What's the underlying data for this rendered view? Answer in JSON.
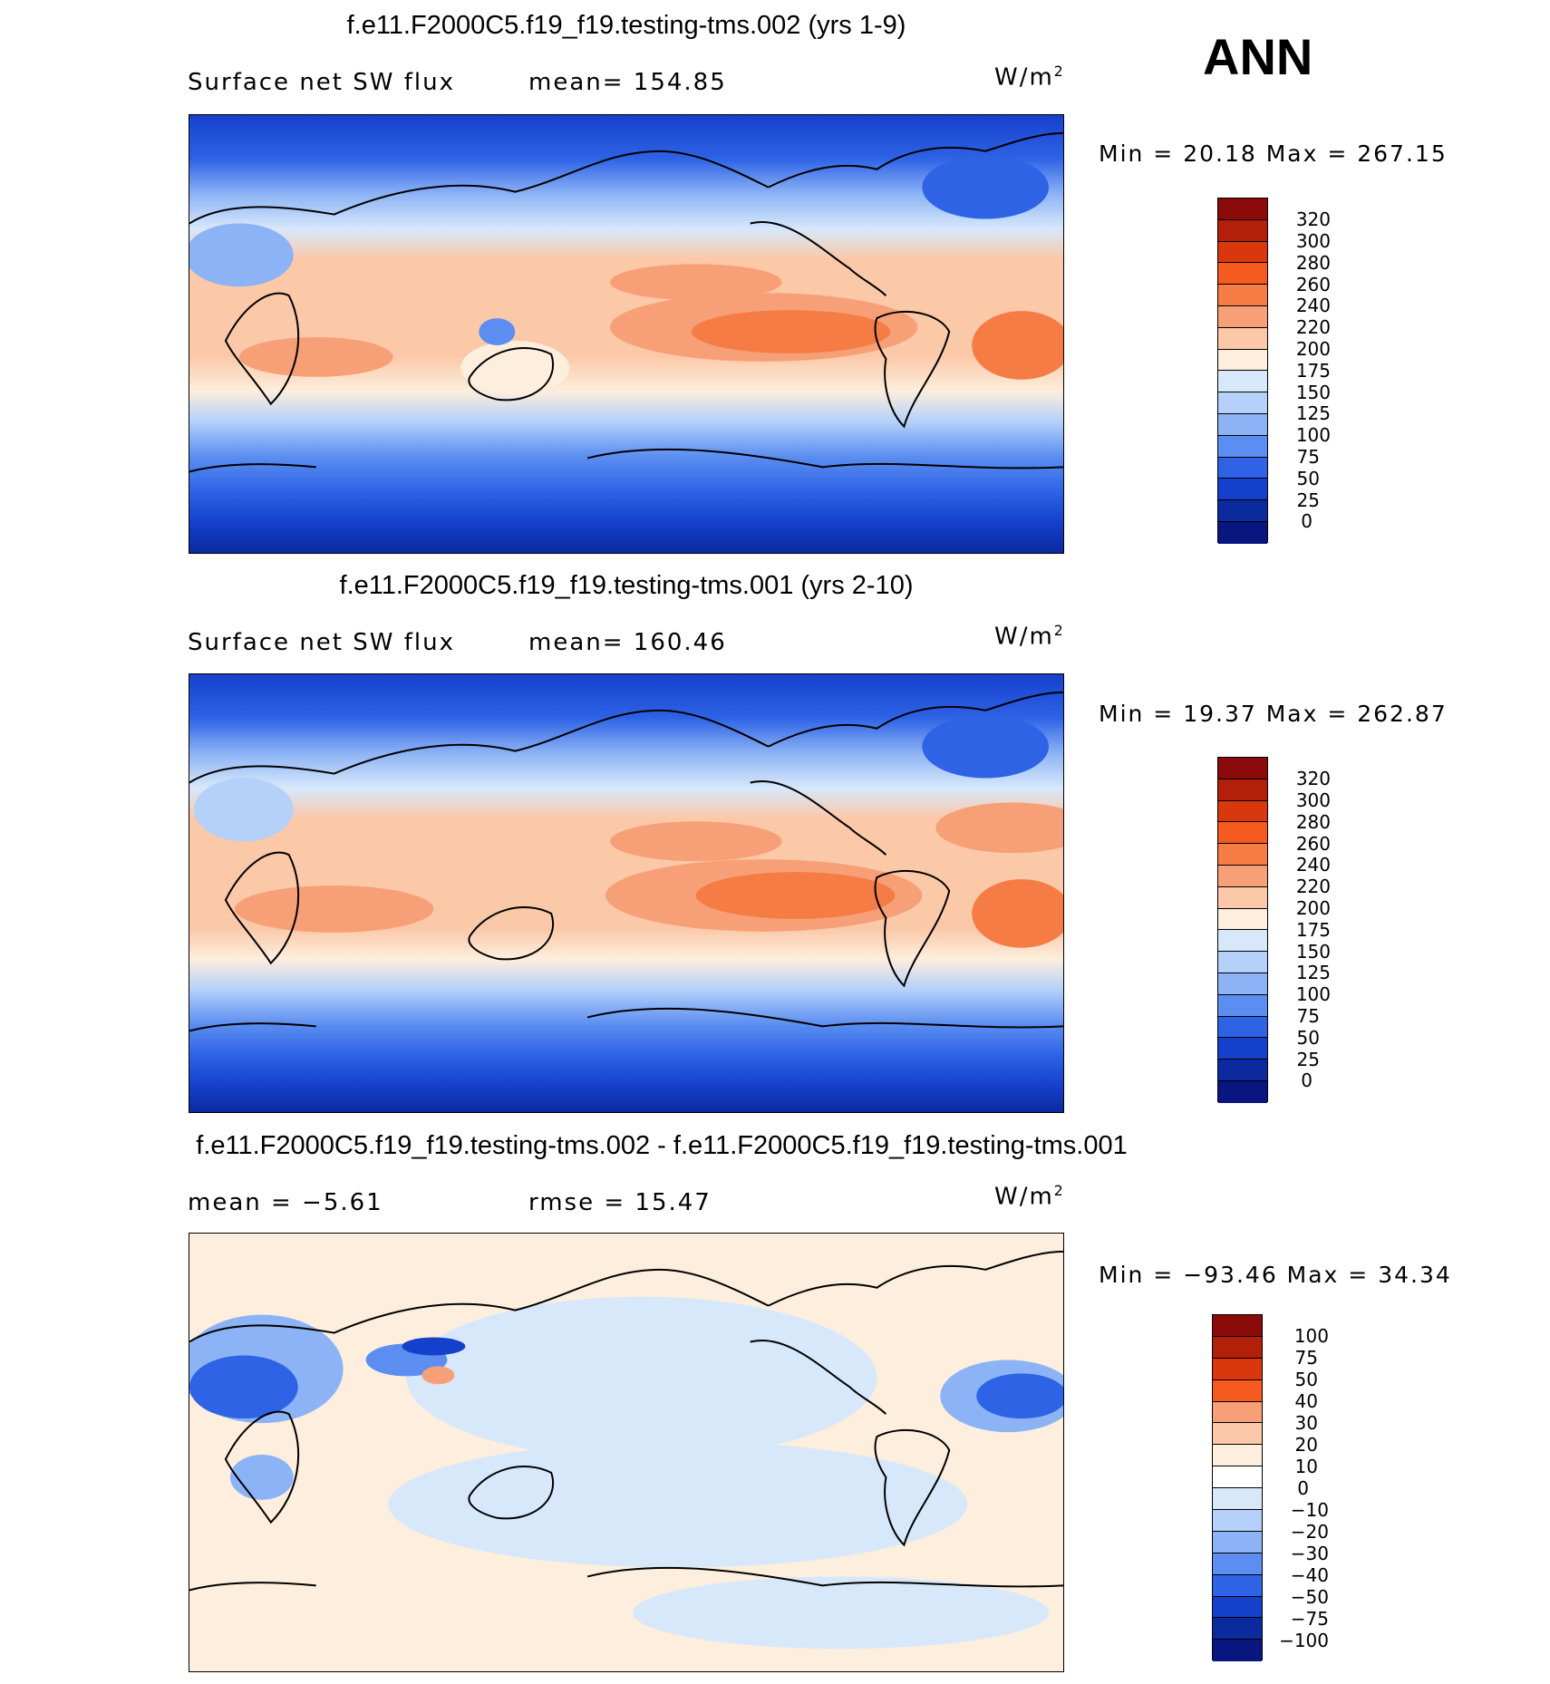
{
  "season": "ANN",
  "panels": [
    {
      "title": "f.e11.F2000C5.f19_f19.testing-tms.002 (yrs 1-9)",
      "left_label": "Surface net SW flux",
      "right_label": "mean= 154.85",
      "units_base": "W/m",
      "units_exp": "2",
      "minmax": "Min =   20.18 Max = 267.15",
      "colorbar_levels": [
        "320",
        "300",
        "280",
        "260",
        "240",
        "220",
        "200",
        "175",
        "150",
        "125",
        "100",
        "75",
        "50",
        "25",
        "0"
      ]
    },
    {
      "title": "f.e11.F2000C5.f19_f19.testing-tms.001 (yrs 2-10)",
      "left_label": "Surface net SW flux",
      "right_label": "mean= 160.46",
      "units_base": "W/m",
      "units_exp": "2",
      "minmax": "Min =   19.37 Max = 262.87",
      "colorbar_levels": [
        "320",
        "300",
        "280",
        "260",
        "240",
        "220",
        "200",
        "175",
        "150",
        "125",
        "100",
        "75",
        "50",
        "25",
        "0"
      ]
    },
    {
      "title": "f.e11.F2000C5.f19_f19.testing-tms.002 - f.e11.F2000C5.f19_f19.testing-tms.001",
      "left_label": "mean =   −5.61",
      "right_label": "rmse =   15.47",
      "units_base": "W/m",
      "units_exp": "2",
      "minmax": "Min = −93.46 Max =   34.34",
      "colorbar_levels": [
        "100",
        "75",
        "50",
        "40",
        "30",
        "20",
        "10",
        "0",
        "−10",
        "−20",
        "−30",
        "−40",
        "−50",
        "−75",
        "−100"
      ]
    }
  ],
  "colors": {
    "abs_palette": [
      "#8b0a0a",
      "#b3200a",
      "#d9380f",
      "#f55a1e",
      "#f57c44",
      "#f7a077",
      "#fbc8a8",
      "#fdeedd",
      "#d7e8fb",
      "#b5d1fa",
      "#8cb3f5",
      "#5b8ef0",
      "#2e63e6",
      "#1540cc",
      "#0a2a9e",
      "#0a1680"
    ],
    "diff_palette": [
      "#8b0a0a",
      "#b3200a",
      "#d9380f",
      "#f55a1e",
      "#f7a077",
      "#fbc8a8",
      "#fdeedd",
      "#ffffff",
      "#d7e8fb",
      "#b5d1fa",
      "#8cb3f5",
      "#5b8ef0",
      "#2e63e6",
      "#1540cc",
      "#0a2a9e",
      "#0a1680"
    ]
  }
}
